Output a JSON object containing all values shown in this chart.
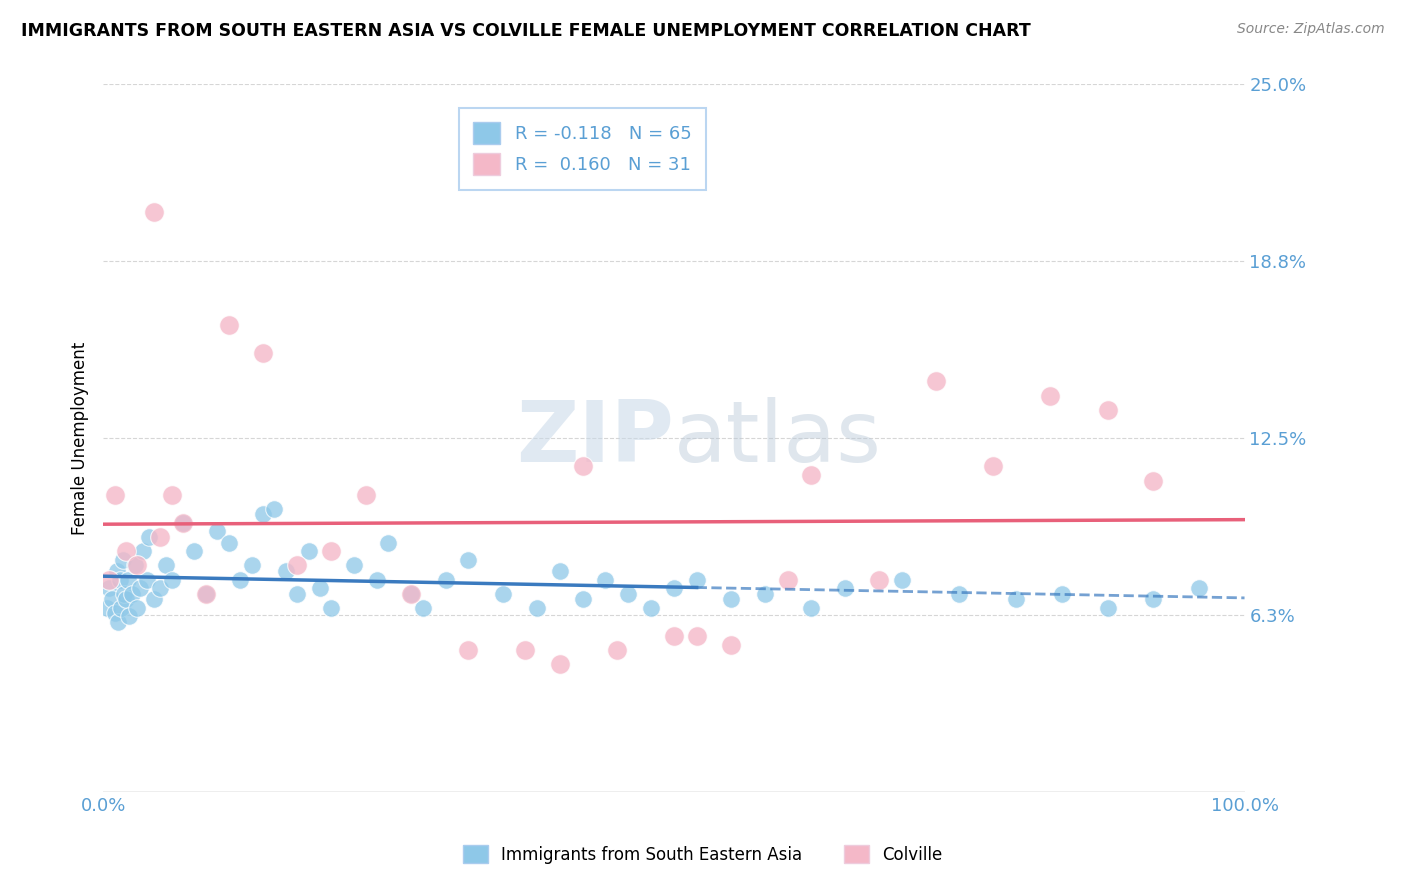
{
  "title": "IMMIGRANTS FROM SOUTH EASTERN ASIA VS COLVILLE FEMALE UNEMPLOYMENT CORRELATION CHART",
  "source": "Source: ZipAtlas.com",
  "ylabel": "Female Unemployment",
  "legend_label1": "Immigrants from South Eastern Asia",
  "legend_label2": "Colville",
  "r1": -0.118,
  "n1": 65,
  "r2": 0.16,
  "n2": 31,
  "xlim": [
    0,
    100
  ],
  "ylim": [
    0,
    25
  ],
  "yticks": [
    0,
    6.25,
    12.5,
    18.75,
    25.0
  ],
  "ytick_labels": [
    "",
    "6.3%",
    "12.5%",
    "18.8%",
    "25.0%"
  ],
  "xtick_labels": [
    "0.0%",
    "100.0%"
  ],
  "color_blue": "#8ec8e8",
  "color_pink": "#f4b8c8",
  "color_blue_line": "#3a7abf",
  "color_pink_line": "#e8607a",
  "color_text_axis": "#5a9fd4",
  "blue_scatter_x": [
    0.3,
    0.5,
    0.8,
    1.0,
    1.2,
    1.3,
    1.5,
    1.6,
    1.7,
    1.8,
    2.0,
    2.2,
    2.3,
    2.5,
    2.8,
    3.0,
    3.2,
    3.5,
    3.8,
    4.0,
    4.5,
    5.0,
    5.5,
    6.0,
    7.0,
    8.0,
    9.0,
    10.0,
    11.0,
    12.0,
    13.0,
    14.0,
    15.0,
    16.0,
    17.0,
    18.0,
    19.0,
    20.0,
    22.0,
    24.0,
    25.0,
    27.0,
    28.0,
    30.0,
    32.0,
    35.0,
    38.0,
    40.0,
    42.0,
    44.0,
    46.0,
    48.0,
    50.0,
    52.0,
    55.0,
    58.0,
    62.0,
    65.0,
    70.0,
    75.0,
    80.0,
    84.0,
    88.0,
    92.0,
    96.0
  ],
  "blue_scatter_y": [
    6.5,
    7.2,
    6.8,
    6.3,
    7.8,
    6.0,
    7.5,
    6.5,
    8.2,
    7.0,
    6.8,
    7.5,
    6.2,
    7.0,
    8.0,
    6.5,
    7.2,
    8.5,
    7.5,
    9.0,
    6.8,
    7.2,
    8.0,
    7.5,
    9.5,
    8.5,
    7.0,
    9.2,
    8.8,
    7.5,
    8.0,
    9.8,
    10.0,
    7.8,
    7.0,
    8.5,
    7.2,
    6.5,
    8.0,
    7.5,
    8.8,
    7.0,
    6.5,
    7.5,
    8.2,
    7.0,
    6.5,
    7.8,
    6.8,
    7.5,
    7.0,
    6.5,
    7.2,
    7.5,
    6.8,
    7.0,
    6.5,
    7.2,
    7.5,
    7.0,
    6.8,
    7.0,
    6.5,
    6.8,
    7.2
  ],
  "pink_scatter_x": [
    0.5,
    1.0,
    2.0,
    3.0,
    4.5,
    5.0,
    6.0,
    7.0,
    9.0,
    11.0,
    14.0,
    17.0,
    20.0,
    23.0,
    27.0,
    32.0,
    37.0,
    42.0,
    50.0,
    55.0,
    62.0,
    68.0,
    73.0,
    78.0,
    83.0,
    88.0,
    92.0,
    52.0,
    60.0,
    40.0,
    45.0
  ],
  "pink_scatter_y": [
    7.5,
    10.5,
    8.5,
    8.0,
    20.5,
    9.0,
    10.5,
    9.5,
    7.0,
    16.5,
    15.5,
    8.0,
    8.5,
    10.5,
    7.0,
    5.0,
    5.0,
    11.5,
    5.5,
    5.2,
    11.2,
    7.5,
    14.5,
    11.5,
    14.0,
    13.5,
    11.0,
    5.5,
    7.5,
    4.5,
    5.0
  ]
}
